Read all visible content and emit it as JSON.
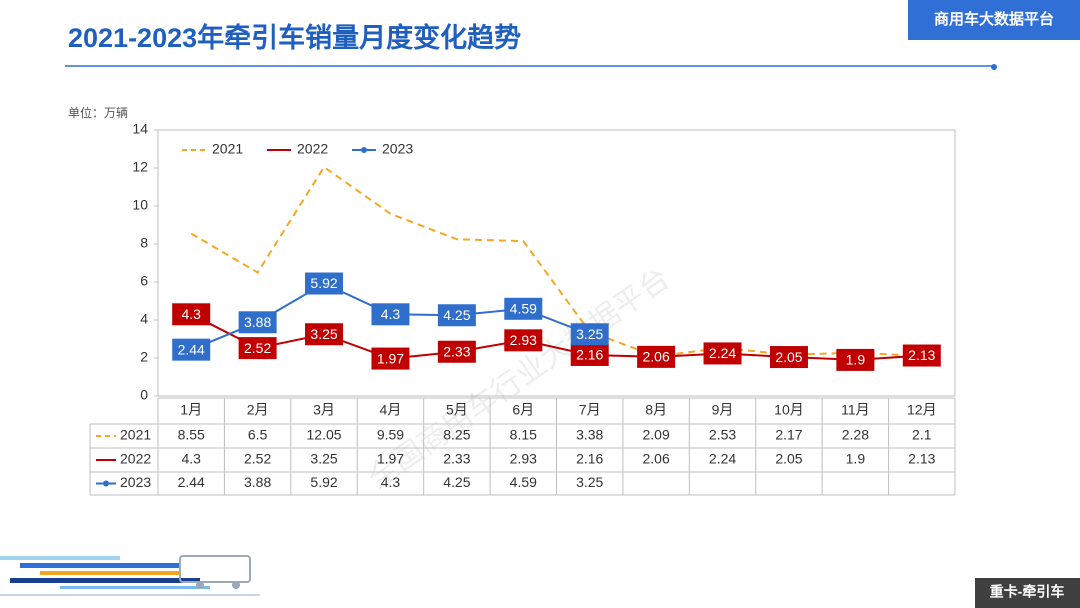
{
  "header": {
    "title": "2021-2023年牵引车销量月度变化趋势",
    "brand": "商用车大数据平台"
  },
  "footer": {
    "tag": "重卡-牵引车"
  },
  "watermark": "全国商用车行业大数据平台",
  "chart_data": {
    "type": "line",
    "unit_label": "单位：万辆",
    "categories": [
      "1月",
      "2月",
      "3月",
      "4月",
      "5月",
      "6月",
      "7月",
      "8月",
      "9月",
      "10月",
      "11月",
      "12月"
    ],
    "series": [
      {
        "name": "2021",
        "color": "#f5a623",
        "dash": true,
        "labels": false,
        "values": [
          8.55,
          6.5,
          12.05,
          9.59,
          8.25,
          8.15,
          3.38,
          2.09,
          2.53,
          2.17,
          2.28,
          2.1
        ]
      },
      {
        "name": "2022",
        "color": "#c00000",
        "dash": false,
        "labels": true,
        "values": [
          4.3,
          2.52,
          3.25,
          1.97,
          2.33,
          2.93,
          2.16,
          2.06,
          2.24,
          2.05,
          1.9,
          2.13
        ]
      },
      {
        "name": "2023",
        "color": "#2f6fcb",
        "dash": false,
        "labels": true,
        "markers": true,
        "values": [
          2.44,
          3.88,
          5.92,
          4.3,
          4.25,
          4.59,
          3.25,
          null,
          null,
          null,
          null,
          null
        ]
      }
    ],
    "ylim": [
      0,
      14
    ],
    "yticks": [
      0,
      2,
      4,
      6,
      8,
      10,
      12,
      14
    ],
    "legend": "top-left"
  }
}
